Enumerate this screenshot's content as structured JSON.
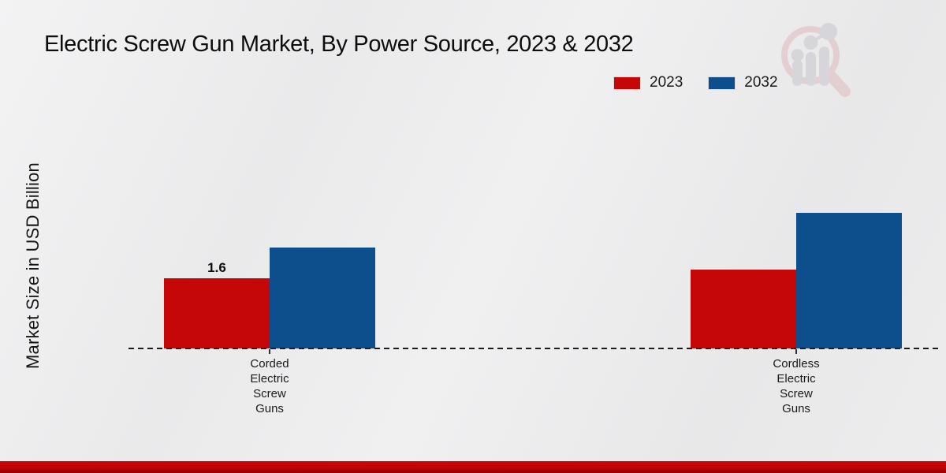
{
  "title": "Electric Screw Gun Market, By Power Source, 2023 & 2032",
  "ylabel": "Market Size in USD Billion",
  "legend": [
    {
      "label": "2023",
      "color": "#c50707"
    },
    {
      "label": "2032",
      "color": "#0d4e8c"
    }
  ],
  "watermark_name": "market-research-future-logo",
  "colors": {
    "accent_red": "#c50707",
    "accent_blue": "#0d4e8c",
    "footer_band": "#c10505",
    "baseline": "#1b1b1b"
  },
  "chart_data": {
    "type": "bar",
    "title": "Electric Screw Gun Market, By Power Source, 2023 & 2032",
    "xlabel": "",
    "ylabel": "Market Size in USD Billion",
    "categories": [
      "Corded Electric Screw Guns",
      "Cordless Electric Screw Guns"
    ],
    "series": [
      {
        "name": "2023",
        "color": "#c50707",
        "values": [
          1.6,
          1.8
        ]
      },
      {
        "name": "2032",
        "color": "#0d4e8c",
        "values": [
          2.3,
          3.1
        ]
      }
    ],
    "bar_labels": [
      {
        "series_index": 0,
        "category_index": 0,
        "text": "1.6"
      }
    ],
    "ylim": [
      0,
      3.5
    ],
    "grid": false,
    "y_axis_ticks_visible": false,
    "baseline_style": "dashed",
    "legend_position": "top-right"
  }
}
